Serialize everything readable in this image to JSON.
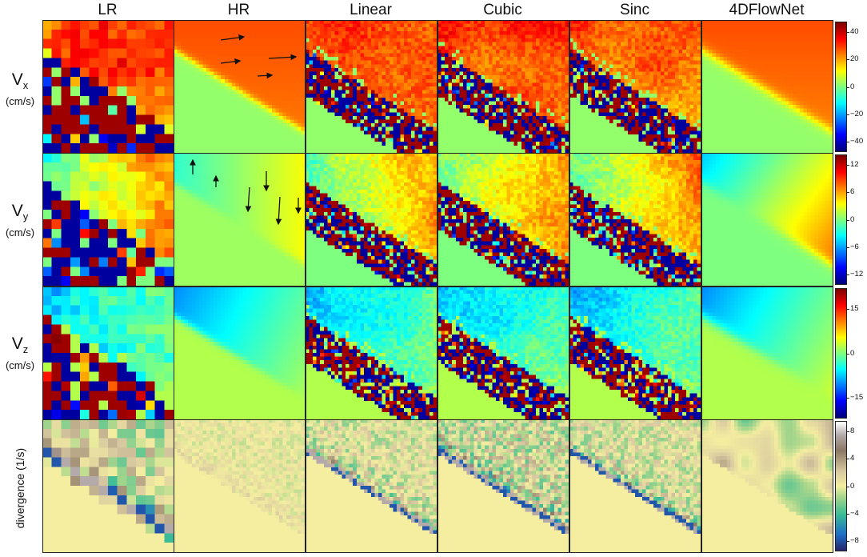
{
  "columns": [
    "LR",
    "HR",
    "Linear",
    "Cubic",
    "Sinc",
    "4DFlowNet"
  ],
  "rows": [
    {
      "symbol": "V",
      "subscript": "x",
      "unit": "(cm/s)",
      "colormap": "jet",
      "ticks": [
        "40",
        "20",
        "0",
        "−20",
        "−40"
      ]
    },
    {
      "symbol": "V",
      "subscript": "y",
      "unit": "(cm/s)",
      "colormap": "jet",
      "ticks": [
        "12",
        "6",
        "0",
        "−6",
        "−12"
      ]
    },
    {
      "symbol": "V",
      "subscript": "z",
      "unit": "(cm/s)",
      "colormap": "jet",
      "ticks": [
        "15",
        "0",
        "−15"
      ]
    },
    {
      "label": "divergence (1/s)",
      "colormap": "diverging-brown-green",
      "ticks": [
        "8",
        "4",
        "0",
        "−4",
        "−8"
      ]
    }
  ],
  "colors": {
    "frame": "#222222",
    "jet_low": "#00007f",
    "jet_high": "#7f0000",
    "divergence_zero": "#f5eea0"
  }
}
